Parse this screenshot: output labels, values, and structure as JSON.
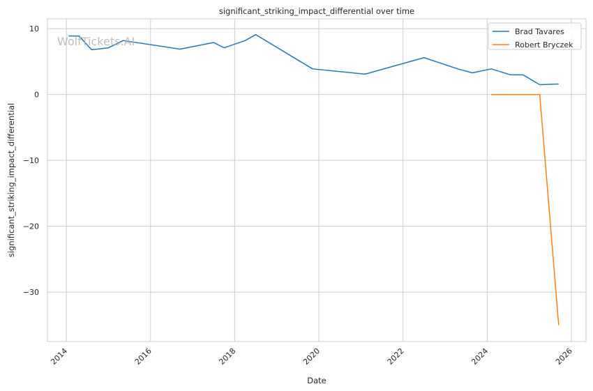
{
  "watermark": "WolfTickets.AI",
  "chart_data": {
    "type": "line",
    "title": "significant_striking_impact_differential over time",
    "xlabel": "Date",
    "ylabel": "significant_striking_impact_differential",
    "xlim": [
      2013.55,
      2026.35
    ],
    "ylim": [
      -37.5,
      11.5
    ],
    "x_ticks": [
      2014,
      2016,
      2018,
      2020,
      2022,
      2024,
      2026
    ],
    "y_ticks": [
      10,
      0,
      -10,
      -20,
      -30
    ],
    "y_tick_labels": [
      "10",
      "0",
      "−10",
      "−20",
      "−30"
    ],
    "grid": true,
    "legend_position": "top-right",
    "series": [
      {
        "name": "Brad Tavares",
        "color": "#1f77b4",
        "x": [
          2014.05,
          2014.3,
          2014.6,
          2015.0,
          2015.35,
          2016.7,
          2017.5,
          2017.75,
          2018.25,
          2018.5,
          2019.85,
          2021.1,
          2021.6,
          2022.5,
          2023.3,
          2023.65,
          2024.1,
          2024.55,
          2024.85,
          2025.25,
          2025.7
        ],
        "y": [
          8.9,
          8.9,
          6.8,
          7.1,
          8.2,
          6.9,
          7.9,
          7.1,
          8.2,
          9.1,
          3.9,
          3.1,
          4.0,
          5.6,
          3.9,
          3.3,
          3.9,
          3.0,
          3.0,
          1.5,
          1.6
        ]
      },
      {
        "name": "Robert Bryczek",
        "color": "#ff7f0e",
        "x": [
          2024.1,
          2024.55,
          2025.25,
          2025.7
        ],
        "y": [
          0.0,
          0.0,
          0.0,
          -35.0
        ]
      }
    ]
  }
}
